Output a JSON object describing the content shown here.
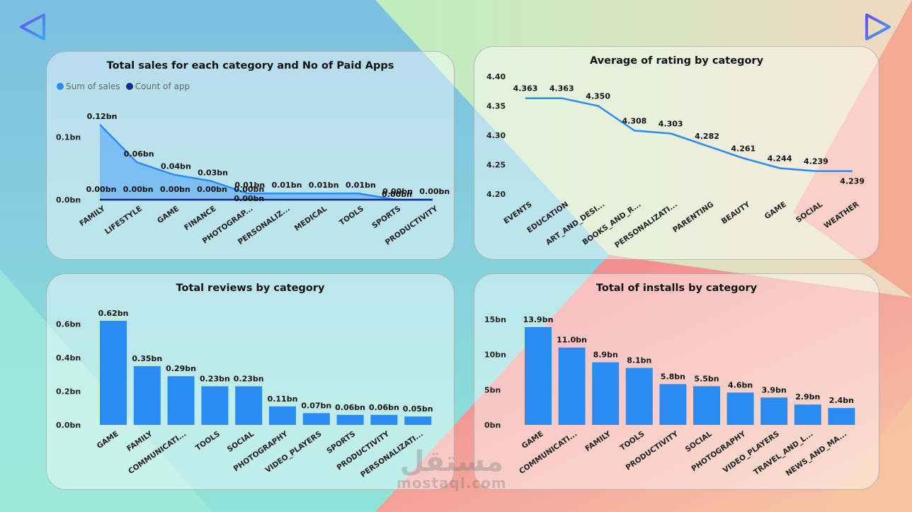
{
  "colors": {
    "bar": "#2a8cf2",
    "dark": "#102a8a",
    "area": "#4aa3f5"
  },
  "navigation": {
    "back_icon": "triangle-left-icon",
    "forward_icon": "triangle-right-icon"
  },
  "watermark": {
    "arabic": "مستقل",
    "latin": "mostaql.com"
  },
  "chart_data": [
    {
      "id": "sales",
      "type": "area",
      "title": "Total sales for each category and No of Paid Apps",
      "legend": [
        "Sum of sales",
        "Count of app"
      ],
      "categories": [
        "FAMILY",
        "LIFESTYLE",
        "GAME",
        "FINANCE",
        "PHOTOGRAP...",
        "PERSONALIZ...",
        "MEDICAL",
        "TOOLS",
        "SPORTS",
        "PRODUCTIVITY"
      ],
      "series": [
        {
          "name": "Sum of sales",
          "values": [
            0.12,
            0.06,
            0.04,
            0.03,
            0.01,
            0.01,
            0.01,
            0.01,
            0.0,
            0.0
          ],
          "labels": [
            "0.12bn",
            "0.06bn",
            "0.04bn",
            "0.03bn",
            "0.01bn",
            "0.01bn",
            "0.01bn",
            "0.01bn",
            "0.00bn",
            "0.00bn"
          ]
        },
        {
          "name": "Count of app",
          "values": [
            0,
            0,
            0,
            0,
            0,
            0,
            0,
            0,
            0,
            0
          ],
          "labels": [
            "0.00bn",
            "0.00bn",
            "0.00bn",
            "0.00bn",
            "0.00bn",
            "",
            "",
            "",
            "0.00bn",
            ""
          ]
        }
      ],
      "yticks": [
        0.0,
        0.1
      ],
      "ytick_labels": [
        "0.0bn",
        "0.1bn"
      ],
      "ylim": [
        0,
        0.12
      ]
    },
    {
      "id": "rating",
      "type": "line",
      "title": "Average of rating by category",
      "categories": [
        "EVENTS",
        "EDUCATION",
        "ART_AND_DESI...",
        "BOOKS_AND_R...",
        "PERSONALIZATI...",
        "PARENTING",
        "BEAUTY",
        "GAME",
        "SOCIAL",
        "WEATHER"
      ],
      "values": [
        4.363,
        4.363,
        4.35,
        4.308,
        4.303,
        4.282,
        4.261,
        4.244,
        4.239,
        4.239
      ],
      "labels": [
        "4.363",
        "4.363",
        "4.350",
        "4.308",
        "4.303",
        "4.282",
        "4.261",
        "4.244",
        "4.239",
        "4.239"
      ],
      "yticks": [
        4.2,
        4.25,
        4.3,
        4.35,
        4.4
      ],
      "ytick_labels": [
        "4.20",
        "4.25",
        "4.30",
        "4.35",
        "4.40"
      ],
      "ylim": [
        4.2,
        4.4
      ]
    },
    {
      "id": "reviews",
      "type": "bar",
      "title": "Total reviews by category",
      "categories": [
        "GAME",
        "FAMILY",
        "COMMUNICATI...",
        "TOOLS",
        "SOCIAL",
        "PHOTOGRAPHY",
        "VIDEO_PLAYERS",
        "SPORTS",
        "PRODUCTIVITY",
        "PERSONALIZATI..."
      ],
      "values": [
        0.62,
        0.35,
        0.29,
        0.23,
        0.23,
        0.11,
        0.07,
        0.06,
        0.06,
        0.05
      ],
      "labels": [
        "0.62bn",
        "0.35bn",
        "0.29bn",
        "0.23bn",
        "0.23bn",
        "0.11bn",
        "0.07bn",
        "0.06bn",
        "0.06bn",
        "0.05bn"
      ],
      "yticks": [
        0.0,
        0.2,
        0.4,
        0.6
      ],
      "ytick_labels": [
        "0.0bn",
        "0.2bn",
        "0.4bn",
        "0.6bn"
      ],
      "ylim": [
        0,
        0.62
      ]
    },
    {
      "id": "installs",
      "type": "bar",
      "title": "Total of installs by category",
      "categories": [
        "GAME",
        "COMMUNICATI...",
        "FAMILY",
        "TOOLS",
        "PRODUCTIVITY",
        "SOCIAL",
        "PHOTOGRAPHY",
        "VIDEO_PLAYERS",
        "TRAVEL_AND_L...",
        "NEWS_AND_MA..."
      ],
      "values": [
        13.9,
        11.0,
        8.9,
        8.1,
        5.8,
        5.5,
        4.6,
        3.9,
        2.9,
        2.4
      ],
      "labels": [
        "13.9bn",
        "11.0bn",
        "8.9bn",
        "8.1bn",
        "5.8bn",
        "5.5bn",
        "4.6bn",
        "3.9bn",
        "2.9bn",
        "2.4bn"
      ],
      "yticks": [
        0,
        5,
        10,
        15
      ],
      "ytick_labels": [
        "0bn",
        "5bn",
        "10bn",
        "15bn"
      ],
      "ylim": [
        0,
        15
      ]
    }
  ]
}
